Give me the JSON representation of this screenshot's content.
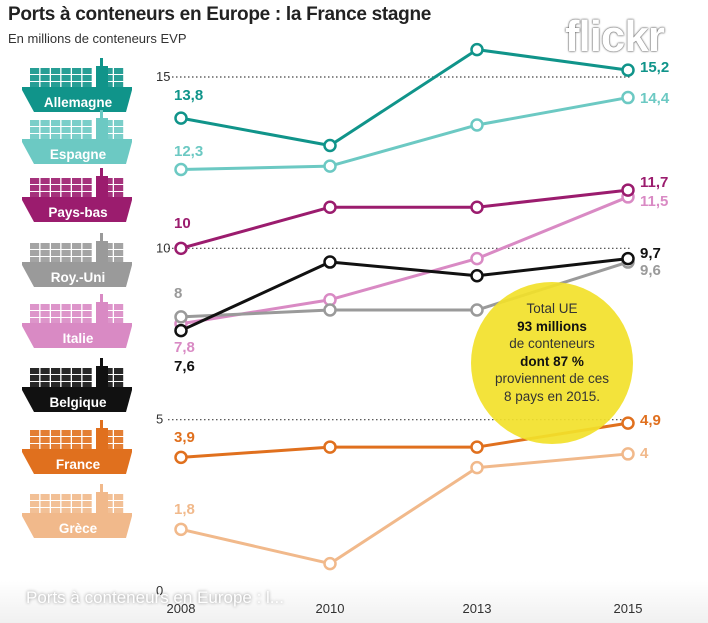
{
  "title": "Ports à conteneurs en Europe : la France stagne",
  "subtitle": "En millions de conteneurs EVP",
  "watermark": "flickr",
  "photo_caption": "Ports à conteneurs en Europe : l...",
  "callout": {
    "lines": [
      "Total UE",
      "93 millions",
      "de conteneurs",
      "dont 87 %",
      "proviennent de ces",
      "8 pays en 2015."
    ],
    "bold": [
      false,
      true,
      false,
      true,
      false,
      false
    ]
  },
  "chart_data": {
    "type": "line",
    "x": [
      2008,
      2010,
      2013,
      2015
    ],
    "x_tick_labels": [
      "2008",
      "2010",
      "2013",
      "2015"
    ],
    "ylim": [
      0,
      16
    ],
    "y_ticks": [
      0,
      5,
      10,
      15
    ],
    "y_tick_labels": [
      "0",
      "5",
      "10",
      "15"
    ],
    "grid": "dotted horizontal lines at 5, 10, 15",
    "series": [
      {
        "name": "Allemagne",
        "color": "#10948a",
        "values": [
          13.8,
          13.0,
          15.8,
          15.2
        ],
        "first_label": "13,8",
        "last_label": "15,2"
      },
      {
        "name": "Espagne",
        "color": "#6cc9c3",
        "values": [
          12.3,
          12.4,
          13.6,
          14.4
        ],
        "first_label": "12,3",
        "last_label": "14,4"
      },
      {
        "name": "Pays-bas",
        "color": "#9b1c6e",
        "values": [
          10.0,
          11.2,
          11.2,
          11.7
        ],
        "first_label": "10",
        "last_label": "11,7"
      },
      {
        "name": "Roy.-Uni",
        "color": "#9a9a9a",
        "values": [
          8.0,
          8.2,
          8.2,
          9.6
        ],
        "first_label": "8",
        "last_label": "9,6"
      },
      {
        "name": "Italie",
        "color": "#d98ac4",
        "values": [
          7.8,
          8.5,
          9.7,
          11.5
        ],
        "first_label": "7,8",
        "last_label": "11,5"
      },
      {
        "name": "Belgique",
        "color": "#111111",
        "values": [
          7.6,
          9.6,
          9.2,
          9.7
        ],
        "first_label": "7,6",
        "last_label": "9,7"
      },
      {
        "name": "France",
        "color": "#e0701e",
        "values": [
          3.9,
          4.2,
          4.2,
          4.9
        ],
        "first_label": "3,9",
        "last_label": "4,9"
      },
      {
        "name": "Grèce",
        "color": "#f1b98b",
        "values": [
          1.8,
          0.8,
          3.6,
          4.0
        ],
        "first_label": "1,8",
        "last_label": "4"
      }
    ]
  }
}
